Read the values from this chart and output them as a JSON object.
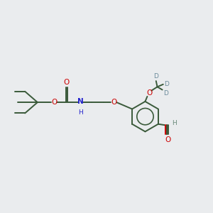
{
  "bg_color": "#eaecee",
  "atom_colors": {
    "O": "#cc0000",
    "N": "#2222cc",
    "C": "#3a5a3a",
    "H": "#6a8a7a",
    "D": "#6a8a9a"
  },
  "lw": 1.4,
  "fs": 7.5,
  "fs_small": 6.5
}
